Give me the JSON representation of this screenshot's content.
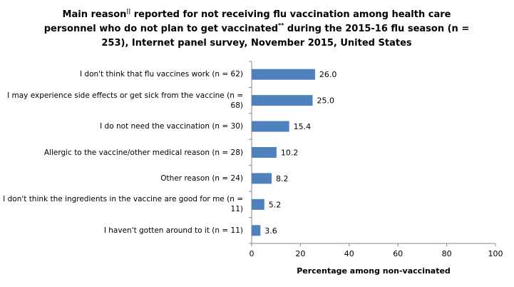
{
  "chart_data": {
    "type": "bar",
    "orientation": "horizontal",
    "title_parts": {
      "a": "Main reason",
      "sup1": "||",
      "b": " reported for not receiving flu vaccination among health care personnel who do not plan to get vaccinated",
      "sup2": "**",
      "c": " during the 2015-16 flu season (n = 253), Internet panel survey, November 2015, United States"
    },
    "categories": [
      "I don't think that flu vaccines work (n = 62)",
      "I may experience side effects or get sick from the vaccine (n = 68)",
      "I do not need the vaccination (n = 30)",
      "Allergic to the vaccine/other medical reason (n = 28)",
      "Other reason (n = 24)",
      "I don't think the ingredients in the vaccine are good for me (n = 11)",
      "I haven't gotten around to it (n = 11)"
    ],
    "values": [
      26.0,
      25.0,
      15.4,
      10.2,
      8.2,
      5.2,
      3.6
    ],
    "data_labels": [
      "26.0",
      "25.0",
      "15.4",
      "10.2",
      "8.2",
      "5.2",
      "3.6"
    ],
    "xlabel": "Percentage among non-vaccinated",
    "xlim": [
      0,
      100
    ],
    "xticks": [
      "0",
      "20",
      "40",
      "60",
      "80",
      "100"
    ],
    "grid": false,
    "bar_color": "#4F81BD"
  }
}
